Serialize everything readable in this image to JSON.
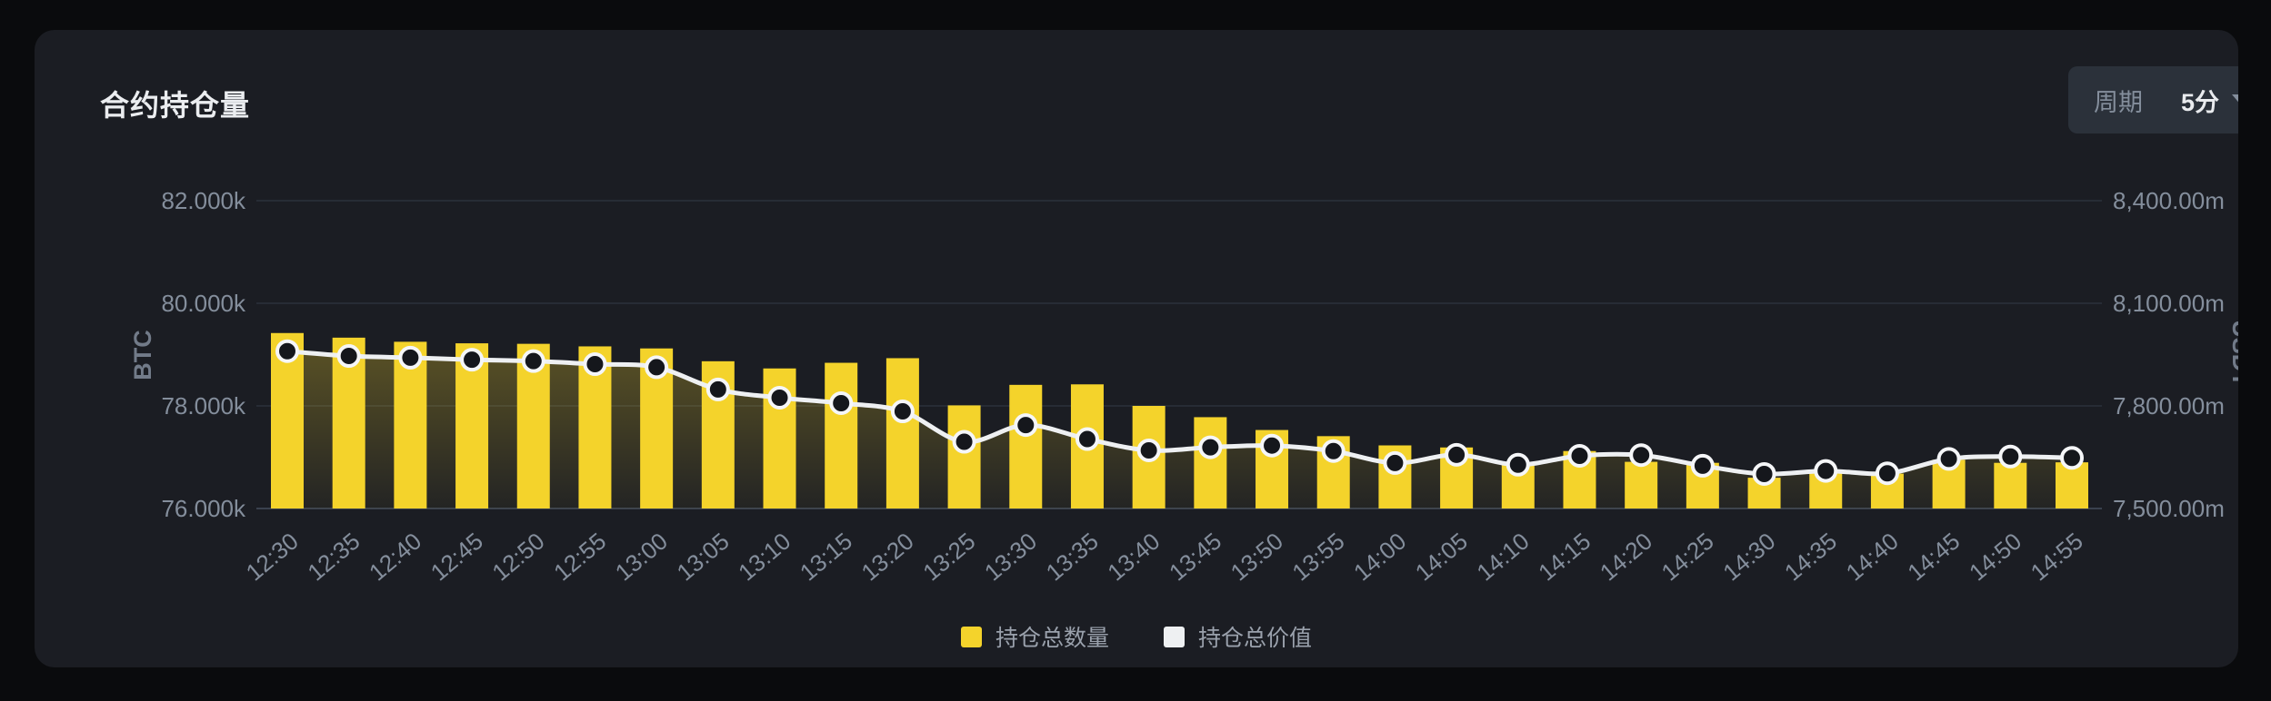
{
  "panel": {
    "title": "合约持仓量"
  },
  "period_control": {
    "label": "周期",
    "value": "5分"
  },
  "legend": [
    {
      "label": "持仓总数量",
      "color": "#f4d32b"
    },
    {
      "label": "持仓总价值",
      "color": "#eef0f2"
    }
  ],
  "chart_data": {
    "type": "bar",
    "title": "合约持仓量",
    "categories": [
      "12:30",
      "12:35",
      "12:40",
      "12:45",
      "12:50",
      "12:55",
      "13:00",
      "13:05",
      "13:10",
      "13:15",
      "13:20",
      "13:25",
      "13:30",
      "13:35",
      "13:40",
      "13:45",
      "13:50",
      "13:55",
      "14:00",
      "14:05",
      "14:10",
      "14:15",
      "14:20",
      "14:25",
      "14:30",
      "14:35",
      "14:40",
      "14:45",
      "14:50",
      "14:55"
    ],
    "series": [
      {
        "name": "持仓总数量",
        "type": "bar",
        "axis": "left",
        "unit": "k BTC",
        "color": "#f4d32b",
        "values": [
          79.42,
          79.33,
          79.25,
          79.22,
          79.21,
          79.16,
          79.12,
          78.87,
          78.73,
          78.84,
          78.93,
          78.01,
          78.41,
          78.42,
          78.0,
          77.78,
          77.53,
          77.41,
          77.23,
          77.19,
          76.86,
          77.12,
          76.91,
          76.89,
          76.6,
          76.74,
          76.68,
          76.95,
          76.89,
          76.9
        ]
      },
      {
        "name": "持仓总价值",
        "type": "line",
        "axis": "right",
        "unit": "m USDT",
        "color": "#eef0f2",
        "values": [
          7960,
          7946,
          7941,
          7935,
          7931,
          7922,
          7913,
          7848,
          7824,
          7808,
          7784,
          7695,
          7744,
          7703,
          7670,
          7679,
          7684,
          7668,
          7633,
          7657,
          7628,
          7654,
          7656,
          7625,
          7601,
          7610,
          7603,
          7645,
          7652,
          7648
        ]
      }
    ],
    "left_axis": {
      "title": "BTC",
      "ticks": [
        "76.000k",
        "78.000k",
        "80.000k",
        "82.000k"
      ],
      "tick_values": [
        76,
        78,
        80,
        82
      ]
    },
    "right_axis": {
      "title": "USDT",
      "ticks": [
        "7,500.00m",
        "7,800.00m",
        "8,100.00m",
        "8,400.00m"
      ],
      "tick_values": [
        7500,
        7800,
        8100,
        8400
      ]
    },
    "grid": true,
    "legend_position": "bottom",
    "colors": {
      "grid_line": "#272c35",
      "axis_base_line": "#3a414e",
      "tick_text": "#848e9c",
      "axis_title_text": "#727b89",
      "marker_fill": "#15171c",
      "marker_stroke": "#f5f6f8"
    }
  }
}
